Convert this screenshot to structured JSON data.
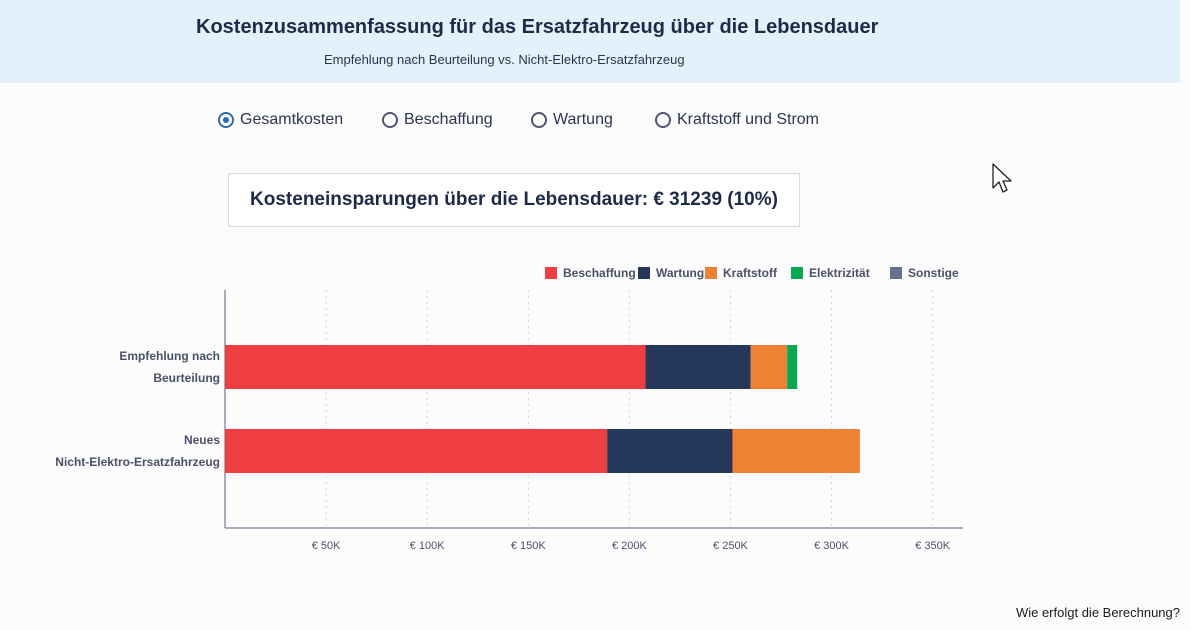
{
  "header": {
    "title": "Kostenzusammenfassung für das Ersatzfahrzeug über die Lebensdauer",
    "subtitle": "Empfehlung nach Beurteilung vs. Nicht-Elektro-Ersatzfahrzeug"
  },
  "options": [
    {
      "label": "Gesamtkosten",
      "selected": true
    },
    {
      "label": "Beschaffung",
      "selected": false
    },
    {
      "label": "Wartung",
      "selected": false
    },
    {
      "label": "Kraftstoff und Strom",
      "selected": false
    }
  ],
  "savings": {
    "text": "Kosteneinsparungen über die Lebensdauer: € 31239 (10%)"
  },
  "chart_data": {
    "type": "bar",
    "orientation": "horizontal",
    "stacked": true,
    "categories": [
      [
        "Empfehlung nach",
        "Beurteilung"
      ],
      [
        "Neues",
        "Nicht-Elektro-Ersatzfahrzeug"
      ]
    ],
    "series": [
      {
        "name": "Beschaffung",
        "color": "#ef3e42",
        "values": [
          208000,
          189000
        ]
      },
      {
        "name": "Wartung",
        "color": "#263859",
        "values": [
          52000,
          62000
        ]
      },
      {
        "name": "Kraftstoff",
        "color": "#ee8133",
        "values": [
          18000,
          63000
        ]
      },
      {
        "name": "Elektrizität",
        "color": "#0aa84f",
        "values": [
          5000,
          0
        ]
      },
      {
        "name": "Sonstige",
        "color": "#64708c",
        "values": [
          0,
          0
        ]
      }
    ],
    "xlim": [
      0,
      365000
    ],
    "xticks": [
      50000,
      100000,
      150000,
      200000,
      250000,
      300000,
      350000
    ],
    "xtick_labels": [
      "€ 50K",
      "€ 100K",
      "€ 150K",
      "€ 200K",
      "€ 250K",
      "€ 300K",
      "€ 350K"
    ],
    "grid": "vertical dotted",
    "legend_position": "top-right"
  },
  "footer": {
    "link": "Wie erfolgt die Berechnung?"
  }
}
